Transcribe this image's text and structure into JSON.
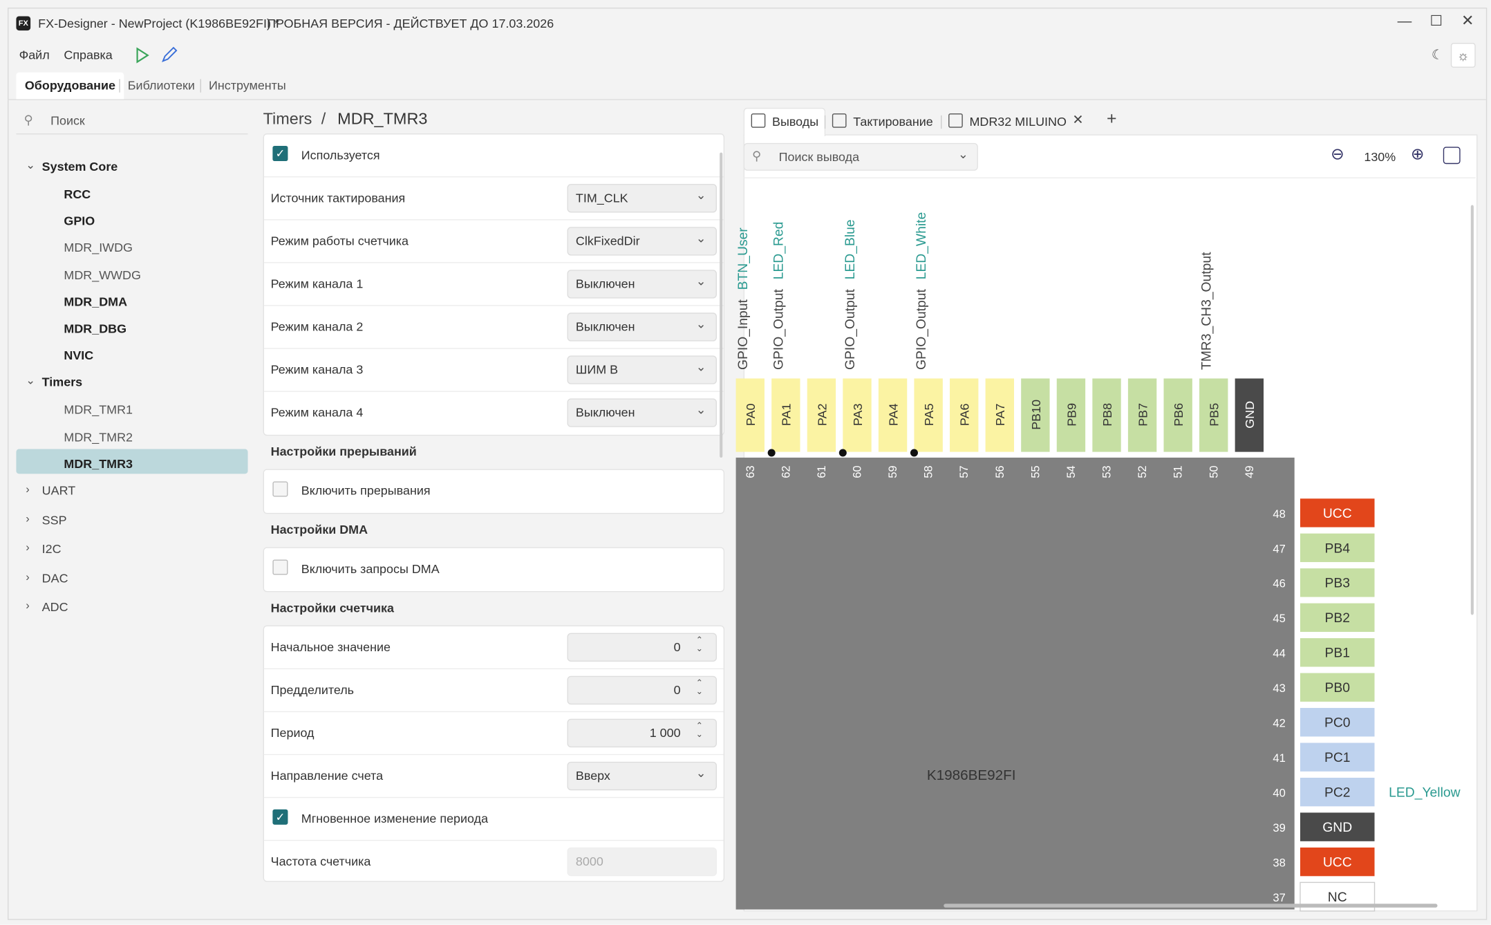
{
  "window": {
    "title": "FX-Designer - NewProject (K1986BE92FI) *",
    "notice": "ПРОБНАЯ ВЕРСИЯ - ДЕЙСТВУЕТ ДО 17.03.2026"
  },
  "menu": [
    "Файл",
    "Справка"
  ],
  "tabs": [
    "Оборудование",
    "Библиотеки",
    "Инструменты"
  ],
  "sidebar": {
    "search": "Поиск",
    "groups": [
      {
        "label": "System Core",
        "expanded": true,
        "items": [
          {
            "label": "RCC",
            "active": true
          },
          {
            "label": "GPIO",
            "active": true
          },
          {
            "label": "MDR_IWDG"
          },
          {
            "label": "MDR_WWDG"
          },
          {
            "label": "MDR_DMA",
            "active": true
          },
          {
            "label": "MDR_DBG",
            "active": true
          },
          {
            "label": "NVIC",
            "active": true
          }
        ]
      },
      {
        "label": "Timers",
        "expanded": true,
        "items": [
          {
            "label": "MDR_TMR1"
          },
          {
            "label": "MDR_TMR2"
          },
          {
            "label": "MDR_TMR3",
            "active": true,
            "selected": true
          }
        ]
      },
      {
        "label": "UART"
      },
      {
        "label": "SSP"
      },
      {
        "label": "I2C"
      },
      {
        "label": "DAC"
      },
      {
        "label": "ADC"
      }
    ]
  },
  "breadcrumb": [
    "Timers",
    "MDR_TMR3"
  ],
  "settings": [
    {
      "rows": [
        {
          "type": "check",
          "label": "Используется",
          "checked": true
        },
        {
          "type": "select",
          "label": "Источник тактирования",
          "value": "TIM_CLK"
        },
        {
          "type": "select",
          "label": "Режим работы счетчика",
          "value": "ClkFixedDir"
        },
        {
          "type": "select",
          "label": "Режим канала 1",
          "value": "Выключен"
        },
        {
          "type": "select",
          "label": "Режим канала 2",
          "value": "Выключен"
        },
        {
          "type": "select",
          "label": "Режим канала 3",
          "value": "ШИМ B"
        },
        {
          "type": "select",
          "label": "Режим канала 4",
          "value": "Выключен"
        }
      ]
    },
    {
      "title": "Настройки прерываний",
      "rows": [
        {
          "type": "check",
          "label": "Включить прерывания",
          "checked": false
        }
      ]
    },
    {
      "title": "Настройки DMA",
      "rows": [
        {
          "type": "check",
          "label": "Включить запросы DMA",
          "checked": false
        }
      ]
    },
    {
      "title": "Настройки счетчика",
      "rows": [
        {
          "type": "spin",
          "label": "Начальное значение",
          "value": "0"
        },
        {
          "type": "spin",
          "label": "Предделитель",
          "value": "0"
        },
        {
          "type": "spin",
          "label": "Период",
          "value": "1 000"
        },
        {
          "type": "select",
          "label": "Направление счета",
          "value": "Вверх"
        },
        {
          "type": "check",
          "label": "Мгновенное изменение периода",
          "checked": true
        },
        {
          "type": "readonly",
          "label": "Частота счетчика",
          "value": "8000"
        }
      ]
    }
  ],
  "view": {
    "tabs": [
      "Выводы",
      "Тактирование",
      "MDR32 MILUINO"
    ],
    "pin_search": "Поиск вывода",
    "zoom": "130%"
  },
  "chip": {
    "name": "K1986BE92FI",
    "top_pins": [
      {
        "name": "PA0",
        "number": "63",
        "color": "#fbf3a3",
        "function": "GPIO_Input",
        "signal": "BTN_User"
      },
      {
        "name": "PA1",
        "number": "62",
        "color": "#fbf3a3",
        "function": "GPIO_Output",
        "signal": "LED_Red",
        "connected": true
      },
      {
        "name": "PA2",
        "number": "61",
        "color": "#fbf3a3"
      },
      {
        "name": "PA3",
        "number": "60",
        "color": "#fbf3a3",
        "function": "GPIO_Output",
        "signal": "LED_Blue",
        "connected": true
      },
      {
        "name": "PA4",
        "number": "59",
        "color": "#fbf3a3"
      },
      {
        "name": "PA5",
        "number": "58",
        "color": "#fbf3a3",
        "function": "GPIO_Output",
        "signal": "LED_White",
        "connected": true
      },
      {
        "name": "PA6",
        "number": "57",
        "color": "#fbf3a3"
      },
      {
        "name": "PA7",
        "number": "56",
        "color": "#fbf3a3"
      },
      {
        "name": "PB10",
        "number": "55",
        "color": "#c6dfa3"
      },
      {
        "name": "PB9",
        "number": "54",
        "color": "#c6dfa3"
      },
      {
        "name": "PB8",
        "number": "53",
        "color": "#c6dfa3"
      },
      {
        "name": "PB7",
        "number": "52",
        "color": "#c6dfa3"
      },
      {
        "name": "PB6",
        "number": "51",
        "color": "#c6dfa3"
      },
      {
        "name": "PB5",
        "number": "50",
        "color": "#c6dfa3",
        "function": "TMR3_CH3_Output"
      },
      {
        "name": "GND",
        "number": "49",
        "color": "#4a4a4a"
      }
    ],
    "right_pins": [
      {
        "name": "UCC",
        "number": "48",
        "color": "#e2461b"
      },
      {
        "name": "PB4",
        "number": "47",
        "color": "#c6dfa3"
      },
      {
        "name": "PB3",
        "number": "46",
        "color": "#c6dfa3"
      },
      {
        "name": "PB2",
        "number": "45",
        "color": "#c6dfa3"
      },
      {
        "name": "PB1",
        "number": "44",
        "color": "#c6dfa3"
      },
      {
        "name": "PB0",
        "number": "43",
        "color": "#c6dfa3"
      },
      {
        "name": "PC0",
        "number": "42",
        "color": "#bed2ee"
      },
      {
        "name": "PC1",
        "number": "41",
        "color": "#bed2ee"
      },
      {
        "name": "PC2",
        "number": "40",
        "color": "#bed2ee",
        "signal": "LED_Yellow"
      },
      {
        "name": "GND",
        "number": "39",
        "color": "#4a4a4a"
      },
      {
        "name": "UCC",
        "number": "38",
        "color": "#e2461b"
      },
      {
        "name": "NC",
        "number": "37",
        "color": "#ffffff"
      }
    ]
  }
}
